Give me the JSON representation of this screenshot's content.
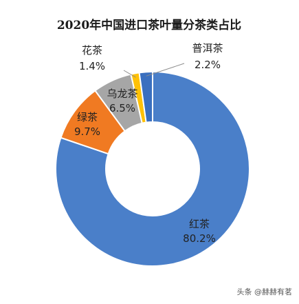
{
  "chart_data": {
    "type": "pie",
    "variant": "donut",
    "title": "2020年中国进口茶叶量分茶类占比",
    "slices": [
      {
        "name": "红茶",
        "value": 80.2,
        "label": "80.2%",
        "color": "#4a7fc9"
      },
      {
        "name": "绿茶",
        "value": 9.7,
        "label": "9.7%",
        "color": "#f07a22"
      },
      {
        "name": "乌龙茶",
        "value": 6.5,
        "label": "6.5%",
        "color": "#a6a6a6"
      },
      {
        "name": "花茶",
        "value": 1.4,
        "label": "1.4%",
        "color": "#ffc107"
      },
      {
        "name": "普洱茶",
        "value": 2.2,
        "label": "2.2%",
        "color": "#3a6fbf"
      }
    ],
    "legend": "none"
  },
  "watermark": "头条 @赫赫有茗"
}
